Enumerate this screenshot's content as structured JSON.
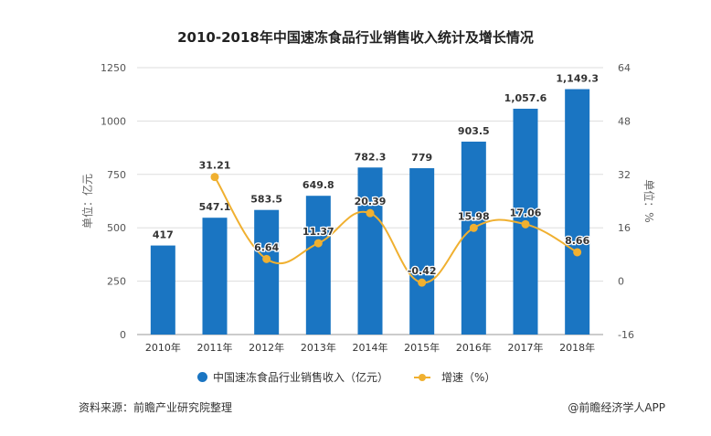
{
  "chart_data": {
    "type": "bar+line",
    "title": "2010-2018年中国速冻食品行业销售收入统计及增长情况",
    "categories": [
      "2010年",
      "2011年",
      "2012年",
      "2013年",
      "2014年",
      "2015年",
      "2016年",
      "2017年",
      "2018年"
    ],
    "series": [
      {
        "name": "中国速冻食品行业销售收入（亿元）",
        "type": "bar",
        "axis": "left",
        "color": "#1a75c2",
        "values": [
          417,
          547.1,
          583.5,
          649.8,
          782.3,
          779,
          903.5,
          1057.6,
          1149.3
        ],
        "labels": [
          "417",
          "547.1",
          "583.5",
          "649.8",
          "782.3",
          "779",
          "903.5",
          "1,057.6",
          "1,149.3"
        ]
      },
      {
        "name": "增速（%）",
        "type": "line",
        "axis": "right",
        "color": "#f0b030",
        "values": [
          null,
          31.21,
          6.64,
          11.37,
          20.39,
          -0.42,
          15.98,
          17.06,
          8.66
        ],
        "labels": [
          "",
          "31.21",
          "6.64",
          "11.37",
          "20.39",
          "-0.42",
          "15.98",
          "17.06",
          "8.66"
        ]
      }
    ],
    "ylabel_left": "单位：亿元",
    "ylabel_right": "单位：%",
    "ylim_left": [
      0,
      1250
    ],
    "yticks_left": [
      "0",
      "250",
      "500",
      "750",
      "1000",
      "1250"
    ],
    "ylim_right": [
      -16,
      64
    ],
    "yticks_right": [
      "-16",
      "0",
      "16",
      "32",
      "48",
      "64"
    ],
    "grid": true,
    "legend": "bottom"
  },
  "footer": {
    "source": "资料来源：前瞻产业研究院整理",
    "credit": "@前瞻经济学人APP"
  }
}
